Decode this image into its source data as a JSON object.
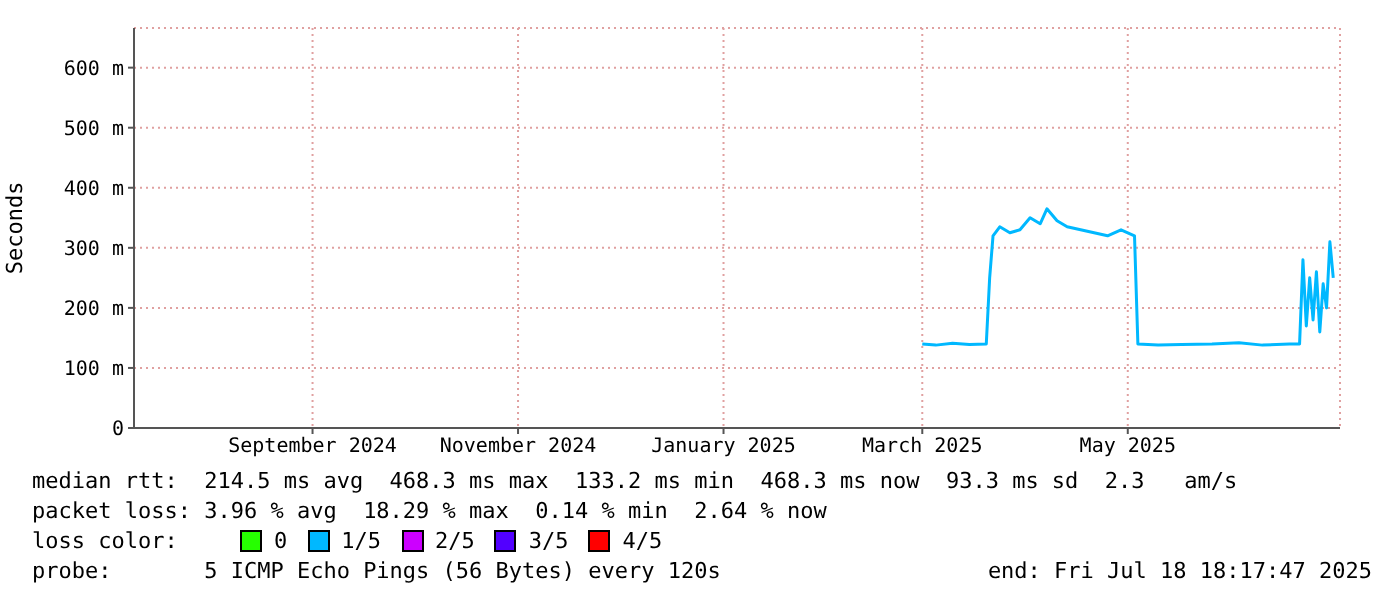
{
  "chart_data": {
    "type": "line",
    "ylabel": "Seconds",
    "x": [
      "2025-03-16",
      "2025-03-20",
      "2025-03-25",
      "2025-03-30",
      "2025-04-04",
      "2025-04-05",
      "2025-04-06",
      "2025-04-08",
      "2025-04-11",
      "2025-04-14",
      "2025-04-17",
      "2025-04-20",
      "2025-04-22",
      "2025-04-25",
      "2025-04-28",
      "2025-05-02",
      "2025-05-06",
      "2025-05-10",
      "2025-05-14",
      "2025-05-18",
      "2025-05-19",
      "2025-05-25",
      "2025-06-01",
      "2025-06-10",
      "2025-06-18",
      "2025-06-25",
      "2025-07-03",
      "2025-07-06",
      "2025-07-07",
      "2025-07-08",
      "2025-07-09",
      "2025-07-10",
      "2025-07-11",
      "2025-07-12",
      "2025-07-13",
      "2025-07-14",
      "2025-07-15",
      "2025-07-16"
    ],
    "series": [
      {
        "name": "0",
        "color": "#26ff00",
        "values": [
          null,
          null,
          null,
          null,
          null,
          null,
          null,
          null,
          null,
          null,
          null,
          null,
          null,
          null,
          null,
          null,
          null,
          null,
          null,
          null,
          null,
          null,
          null,
          null,
          null,
          null,
          null,
          null,
          null,
          null,
          null,
          null,
          null,
          null,
          null,
          null,
          null,
          null
        ]
      },
      {
        "name": "1/5",
        "color": "#00b8ff",
        "values": [
          140,
          138,
          141,
          139,
          140,
          250,
          320,
          335,
          325,
          330,
          350,
          340,
          365,
          345,
          335,
          330,
          325,
          320,
          330,
          320,
          140,
          138,
          139,
          140,
          142,
          138,
          140,
          140,
          280,
          170,
          250,
          180,
          260,
          160,
          240,
          200,
          310,
          250
        ]
      },
      {
        "name": "2/5",
        "color": "#cc00ff",
        "values": [
          null,
          null,
          null,
          null,
          null,
          null,
          null,
          null,
          null,
          null,
          null,
          null,
          null,
          null,
          null,
          null,
          null,
          null,
          null,
          null,
          null,
          null,
          null,
          null,
          null,
          null,
          null,
          null,
          null,
          null,
          null,
          null,
          null,
          null,
          null,
          null,
          null,
          null
        ]
      },
      {
        "name": "3/5",
        "color": "#5200ff",
        "values": [
          null,
          null,
          null,
          null,
          null,
          null,
          null,
          null,
          null,
          null,
          null,
          null,
          null,
          null,
          null,
          null,
          null,
          null,
          null,
          null,
          null,
          null,
          null,
          null,
          null,
          null,
          null,
          null,
          null,
          null,
          null,
          null,
          null,
          null,
          null,
          null,
          null,
          null
        ]
      },
      {
        "name": "4/5",
        "color": "#ff0000",
        "values": [
          null,
          null,
          null,
          null,
          null,
          null,
          null,
          null,
          null,
          null,
          null,
          null,
          null,
          null,
          null,
          null,
          null,
          null,
          null,
          null,
          null,
          null,
          null,
          null,
          null,
          null,
          null,
          null,
          null,
          null,
          null,
          null,
          null,
          null,
          null,
          null,
          null,
          null
        ]
      }
    ],
    "legend_title": "loss color:",
    "legend": "bottom",
    "xlim": [
      "2024-07-25",
      "2025-07-18"
    ],
    "xticks": [
      {
        "value": "2024-09-16",
        "label": "September 2024"
      },
      {
        "value": "2024-11-16",
        "label": "November 2024"
      },
      {
        "value": "2025-01-16",
        "label": "January 2025"
      },
      {
        "value": "2025-03-16",
        "label": "March 2025"
      },
      {
        "value": "2025-05-16",
        "label": "May 2025"
      }
    ],
    "ylim": [
      0,
      666
    ],
    "yticks": [
      0,
      {
        "value": 100,
        "label": "100 m"
      },
      {
        "value": 200,
        "label": "200 m"
      },
      {
        "value": 300,
        "label": "300 m"
      },
      {
        "value": 400,
        "label": "400 m"
      },
      {
        "value": 500,
        "label": "500 m"
      },
      {
        "value": 600,
        "label": "600 m"
      }
    ],
    "grid": true,
    "marker": "none",
    "line_style": "solid",
    "annotations": [
      "median rtt:  214.5 ms avg  468.3 ms max  133.2 ms min  468.3 ms now  93.3 ms sd  2.3   am/s",
      "packet loss: 3.96 % avg  18.29 % max  0.14 % min  2.64 % now",
      "probe:       5 ICMP Echo Pings (56 Bytes) every 120s",
      "end: Fri Jul 18 18:17:47 2025"
    ]
  }
}
